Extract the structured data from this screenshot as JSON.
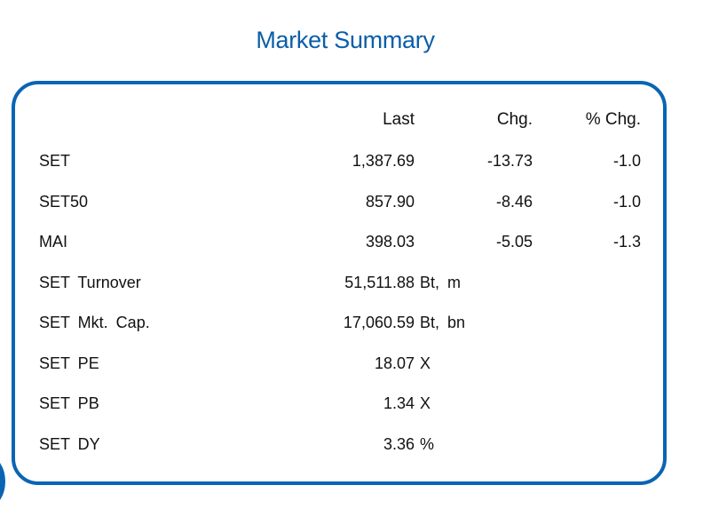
{
  "title": "Market Summary",
  "table": {
    "headers": {
      "last": "Last",
      "chg": "Chg.",
      "pct": "% Chg."
    },
    "index_rows": [
      {
        "name": "SET",
        "last": "1,387.69",
        "chg": "-13.73",
        "pct": "-1.0"
      },
      {
        "name": "SET50",
        "last": "857.90",
        "chg": "-8.46",
        "pct": "-1.0"
      },
      {
        "name": "MAI",
        "last": "398.03",
        "chg": "-5.05",
        "pct": "-1.3"
      }
    ],
    "stat_rows": [
      {
        "name": "SET Turnover",
        "value": "51,511.88",
        "unit": "Bt, m"
      },
      {
        "name": "SET Mkt. Cap.",
        "value": "17,060.59",
        "unit": "Bt, bn"
      },
      {
        "name": "SET PE",
        "value": "18.07",
        "unit": "X"
      },
      {
        "name": "SET PB",
        "value": "1.34",
        "unit": "X"
      },
      {
        "name": "SET DY",
        "value": "3.36",
        "unit": "%"
      }
    ]
  },
  "colors": {
    "accent": "#0a64b4",
    "title": "#0a5ea8",
    "text": "#111111"
  }
}
